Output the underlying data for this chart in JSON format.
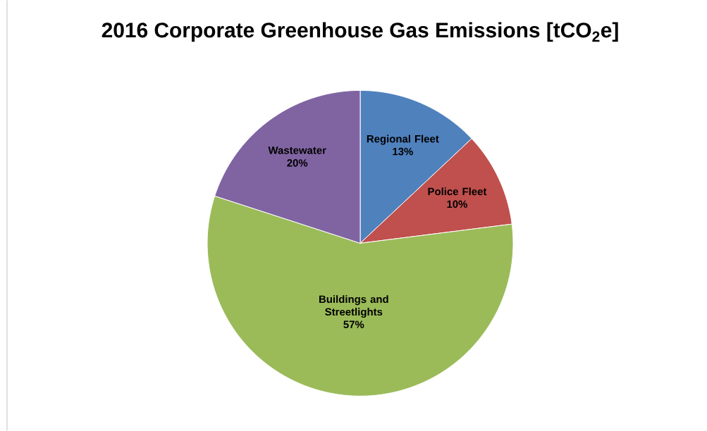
{
  "chart_data": {
    "type": "pie",
    "title": "2016 Corporate Greenhouse Gas Emissions [tCO$_{2}$e]",
    "categories": [
      "Regional Fleet",
      "Police Fleet",
      "Buildings and Streetlights",
      "Wastewater"
    ],
    "values": [
      13,
      10,
      57,
      20
    ],
    "value_labels": [
      "13%",
      "10%",
      "57%",
      "20%"
    ],
    "colors": [
      "#4f81bd",
      "#c0504d",
      "#9bbb59",
      "#8064a2"
    ]
  }
}
